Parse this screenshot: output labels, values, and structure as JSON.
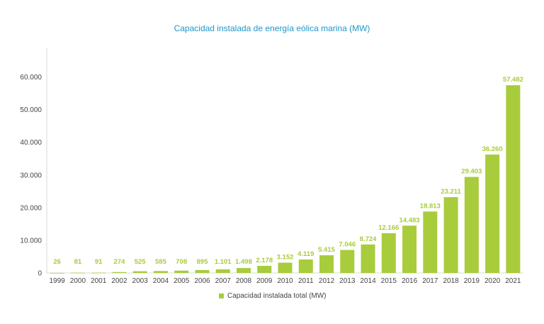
{
  "chart_data": {
    "type": "bar",
    "title": "Capacidad instalada de energía eólica marina (MW)",
    "xlabel": "",
    "ylabel": "",
    "ylim": [
      0,
      60000
    ],
    "yticks": [
      0,
      10000,
      20000,
      30000,
      40000,
      50000,
      60000
    ],
    "ytick_labels": [
      "0",
      "10.000",
      "20.000",
      "30.000",
      "40.000",
      "50.000",
      "60.000"
    ],
    "categories": [
      "1999",
      "2000",
      "2001",
      "2002",
      "2003",
      "2004",
      "2005",
      "2006",
      "2007",
      "2008",
      "2009",
      "2010",
      "2011",
      "2012",
      "2013",
      "2014",
      "2015",
      "2016",
      "2017",
      "2018",
      "2019",
      "2020",
      "2021"
    ],
    "series": [
      {
        "name": "Capacidad instalada total (MW)",
        "color": "#a8cc3c",
        "values": [
          26,
          81,
          91,
          274,
          525,
          585,
          708,
          895,
          1101,
          1498,
          2178,
          3152,
          4119,
          5415,
          7046,
          8724,
          12166,
          14483,
          18813,
          23211,
          29403,
          36260,
          57482
        ],
        "value_labels": [
          "26",
          "81",
          "91",
          "274",
          "525",
          "585",
          "708",
          "895",
          "1.101",
          "1.498",
          "2.178",
          "3.152",
          "4.119",
          "5.415",
          "7.046",
          "8.724",
          "12.166",
          "14.483",
          "18.813",
          "23.211",
          "29.403",
          "36.260",
          "57.482"
        ]
      }
    ],
    "grid": false,
    "legend_position": "bottom"
  }
}
